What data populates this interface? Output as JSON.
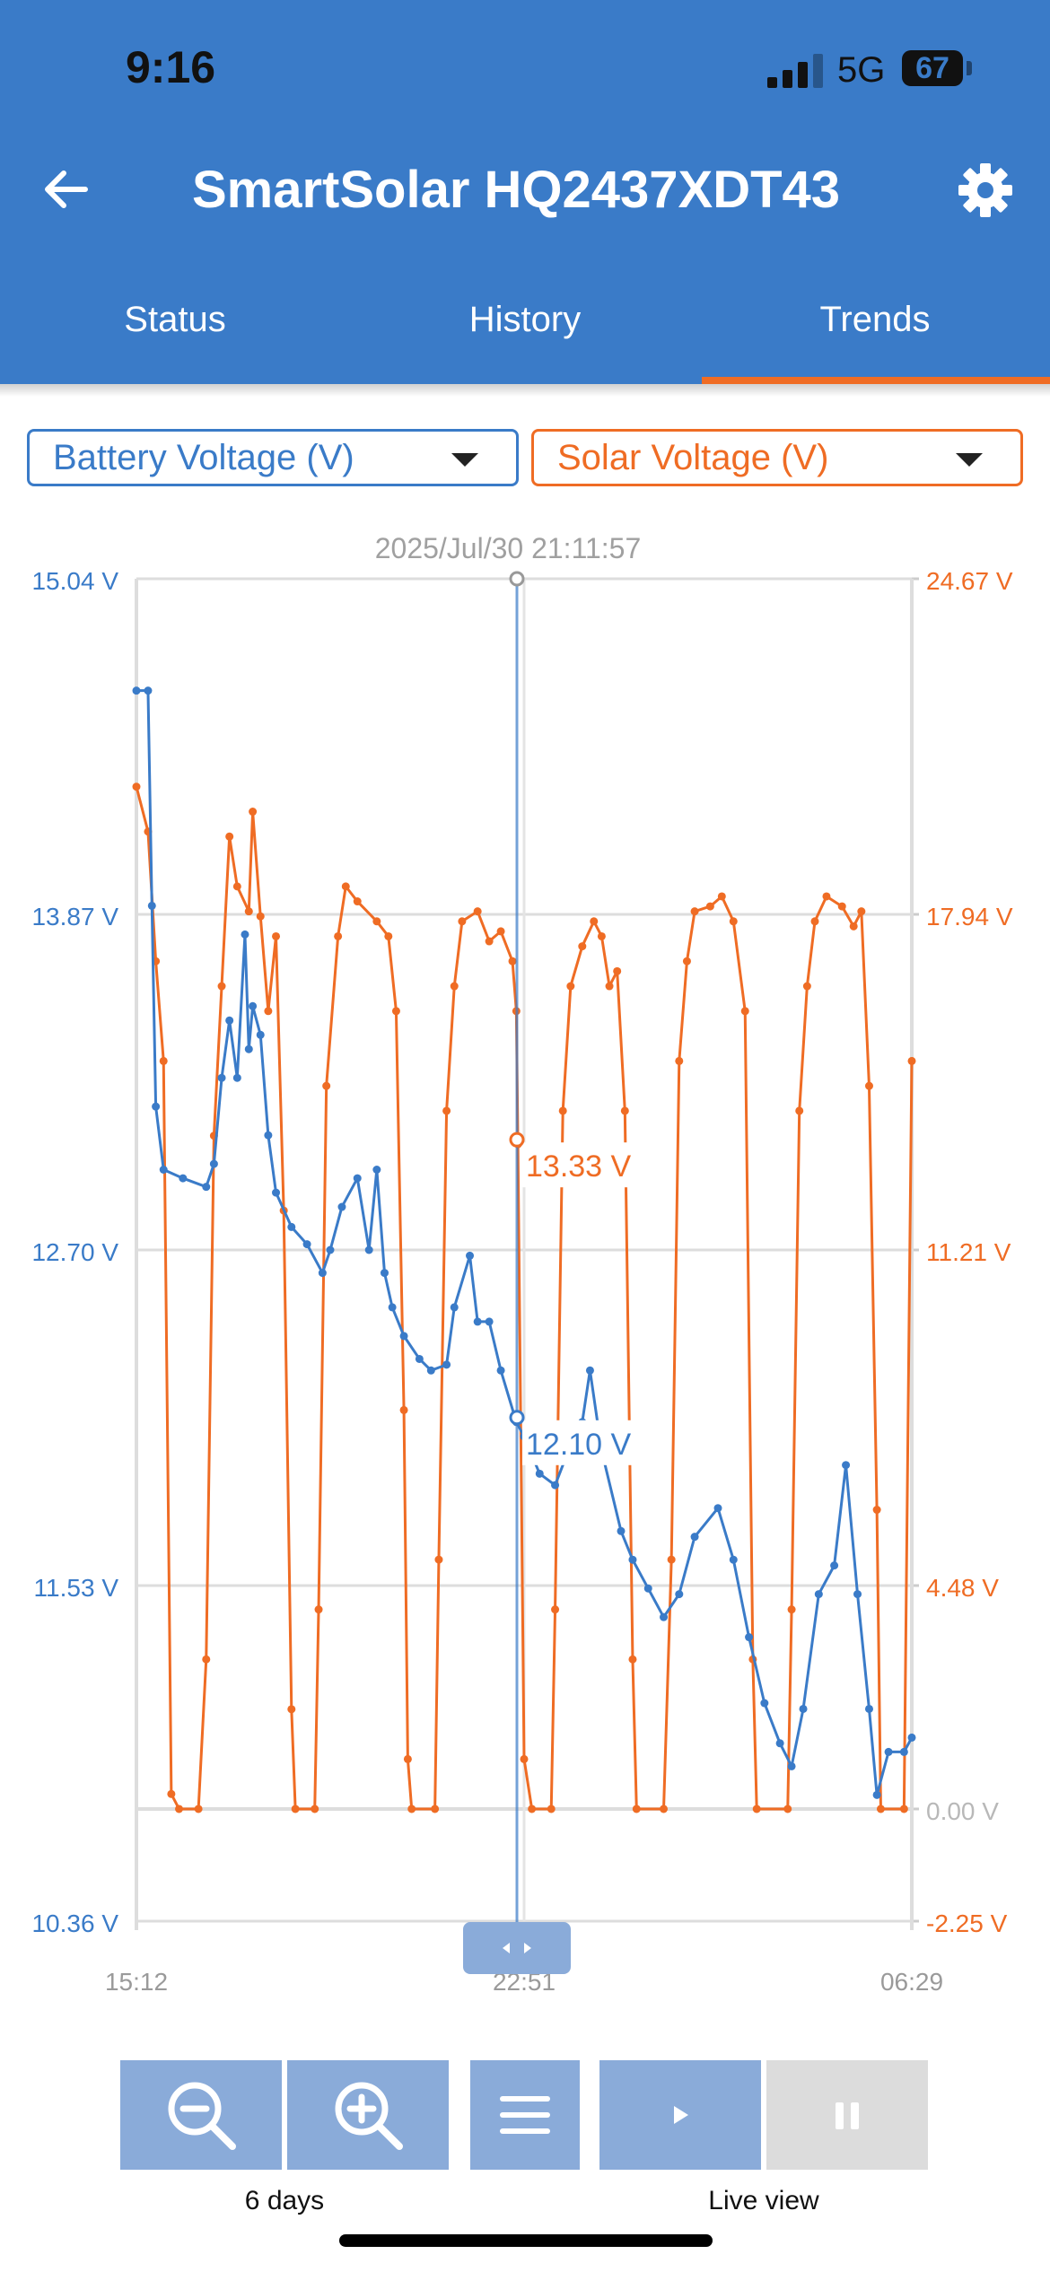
{
  "status_bar": {
    "time": "9:16",
    "network": "5G",
    "battery": "67"
  },
  "header": {
    "title": "SmartSolar HQ2437XDT43"
  },
  "tabs": [
    {
      "label": "Status",
      "active": false
    },
    {
      "label": "History",
      "active": false
    },
    {
      "label": "Trends",
      "active": true
    }
  ],
  "selectors": {
    "left": {
      "value": "Battery Voltage (V)"
    },
    "right": {
      "value": "Solar Voltage (V)"
    }
  },
  "colors": {
    "battery": "#3a7bc8",
    "solar": "#ef6c24",
    "header": "#3a7bc8"
  },
  "chart_data": {
    "type": "line",
    "cursor": {
      "timestamp": "2025/Jul/30 21:11:57",
      "battery_label": "12.10 V",
      "solar_label": "13.33 V",
      "battery": 12.1,
      "solar": 13.33
    },
    "x_ticks": [
      "15:12",
      "22:51",
      "06:29"
    ],
    "left_axis": {
      "ticks": [
        "15.04 V",
        "13.87 V",
        "12.70 V",
        "11.53 V",
        "10.36 V"
      ],
      "range": [
        10.36,
        15.04
      ]
    },
    "right_axis": {
      "ticks": [
        "24.67 V",
        "17.94 V",
        "11.21 V",
        "4.48 V",
        "0.00 V",
        "-2.25 V"
      ],
      "range": [
        -2.25,
        24.67
      ]
    },
    "x_range": [
      0,
      1
    ],
    "series": [
      {
        "name": "Battery Voltage (V)",
        "axis": "left",
        "points": [
          [
            0.0,
            14.65
          ],
          [
            0.015,
            14.65
          ],
          [
            0.02,
            13.9
          ],
          [
            0.025,
            13.2
          ],
          [
            0.035,
            12.98
          ],
          [
            0.06,
            12.95
          ],
          [
            0.09,
            12.92
          ],
          [
            0.1,
            13.0
          ],
          [
            0.11,
            13.3
          ],
          [
            0.12,
            13.5
          ],
          [
            0.13,
            13.3
          ],
          [
            0.14,
            13.8
          ],
          [
            0.145,
            13.4
          ],
          [
            0.15,
            13.55
          ],
          [
            0.16,
            13.45
          ],
          [
            0.17,
            13.1
          ],
          [
            0.18,
            12.9
          ],
          [
            0.2,
            12.78
          ],
          [
            0.22,
            12.72
          ],
          [
            0.24,
            12.62
          ],
          [
            0.25,
            12.7
          ],
          [
            0.265,
            12.85
          ],
          [
            0.285,
            12.95
          ],
          [
            0.3,
            12.7
          ],
          [
            0.31,
            12.98
          ],
          [
            0.32,
            12.62
          ],
          [
            0.33,
            12.5
          ],
          [
            0.345,
            12.4
          ],
          [
            0.365,
            12.32
          ],
          [
            0.38,
            12.28
          ],
          [
            0.4,
            12.3
          ],
          [
            0.41,
            12.5
          ],
          [
            0.43,
            12.68
          ],
          [
            0.44,
            12.45
          ],
          [
            0.455,
            12.45
          ],
          [
            0.47,
            12.28
          ],
          [
            0.49,
            12.1
          ],
          [
            0.5,
            12.05
          ],
          [
            0.52,
            11.92
          ],
          [
            0.54,
            11.88
          ],
          [
            0.56,
            12.02
          ],
          [
            0.575,
            12.1
          ],
          [
            0.585,
            12.28
          ],
          [
            0.6,
            12.0
          ],
          [
            0.625,
            11.72
          ],
          [
            0.64,
            11.62
          ],
          [
            0.66,
            11.52
          ],
          [
            0.68,
            11.42
          ],
          [
            0.7,
            11.5
          ],
          [
            0.72,
            11.7
          ],
          [
            0.75,
            11.8
          ],
          [
            0.77,
            11.62
          ],
          [
            0.79,
            11.35
          ],
          [
            0.81,
            11.12
          ],
          [
            0.83,
            10.98
          ],
          [
            0.845,
            10.9
          ],
          [
            0.86,
            11.1
          ],
          [
            0.88,
            11.5
          ],
          [
            0.9,
            11.6
          ],
          [
            0.915,
            11.95
          ],
          [
            0.93,
            11.5
          ],
          [
            0.945,
            11.1
          ],
          [
            0.955,
            10.8
          ],
          [
            0.97,
            10.95
          ],
          [
            0.99,
            10.95
          ],
          [
            1.0,
            11.0
          ]
        ]
      },
      {
        "name": "Solar Voltage (V)",
        "axis": "right",
        "points": [
          [
            0.0,
            20.5
          ],
          [
            0.015,
            19.6
          ],
          [
            0.025,
            17.0
          ],
          [
            0.035,
            15.0
          ],
          [
            0.045,
            0.3
          ],
          [
            0.055,
            0.0
          ],
          [
            0.08,
            0.0
          ],
          [
            0.09,
            3.0
          ],
          [
            0.1,
            13.5
          ],
          [
            0.11,
            16.5
          ],
          [
            0.12,
            19.5
          ],
          [
            0.13,
            18.5
          ],
          [
            0.145,
            18.0
          ],
          [
            0.15,
            20.0
          ],
          [
            0.16,
            17.9
          ],
          [
            0.17,
            16.0
          ],
          [
            0.18,
            17.5
          ],
          [
            0.19,
            12.0
          ],
          [
            0.2,
            2.0
          ],
          [
            0.205,
            0.0
          ],
          [
            0.23,
            0.0
          ],
          [
            0.235,
            4.0
          ],
          [
            0.245,
            14.5
          ],
          [
            0.26,
            17.5
          ],
          [
            0.27,
            18.5
          ],
          [
            0.285,
            18.2
          ],
          [
            0.31,
            17.8
          ],
          [
            0.325,
            17.5
          ],
          [
            0.335,
            16.0
          ],
          [
            0.345,
            8.0
          ],
          [
            0.35,
            1.0
          ],
          [
            0.355,
            0.0
          ],
          [
            0.385,
            0.0
          ],
          [
            0.39,
            5.0
          ],
          [
            0.4,
            14.0
          ],
          [
            0.41,
            16.5
          ],
          [
            0.42,
            17.8
          ],
          [
            0.44,
            18.0
          ],
          [
            0.455,
            17.4
          ],
          [
            0.47,
            17.6
          ],
          [
            0.485,
            17.0
          ],
          [
            0.49,
            16.0
          ],
          [
            0.492,
            13.33
          ],
          [
            0.5,
            1.0
          ],
          [
            0.51,
            0.0
          ],
          [
            0.535,
            0.0
          ],
          [
            0.54,
            4.0
          ],
          [
            0.55,
            14.0
          ],
          [
            0.56,
            16.5
          ],
          [
            0.575,
            17.3
          ],
          [
            0.59,
            17.8
          ],
          [
            0.6,
            17.5
          ],
          [
            0.61,
            16.5
          ],
          [
            0.62,
            16.8
          ],
          [
            0.63,
            14.0
          ],
          [
            0.64,
            3.0
          ],
          [
            0.645,
            0.0
          ],
          [
            0.68,
            0.0
          ],
          [
            0.69,
            5.0
          ],
          [
            0.7,
            15.0
          ],
          [
            0.71,
            17.0
          ],
          [
            0.72,
            18.0
          ],
          [
            0.74,
            18.1
          ],
          [
            0.755,
            18.3
          ],
          [
            0.77,
            17.8
          ],
          [
            0.785,
            16.0
          ],
          [
            0.795,
            3.0
          ],
          [
            0.8,
            0.0
          ],
          [
            0.84,
            0.0
          ],
          [
            0.845,
            4.0
          ],
          [
            0.855,
            14.0
          ],
          [
            0.865,
            16.5
          ],
          [
            0.875,
            17.8
          ],
          [
            0.89,
            18.3
          ],
          [
            0.91,
            18.1
          ],
          [
            0.925,
            17.7
          ],
          [
            0.935,
            18.0
          ],
          [
            0.945,
            14.5
          ],
          [
            0.955,
            6.0
          ],
          [
            0.96,
            0.0
          ],
          [
            0.99,
            0.0
          ],
          [
            1.0,
            15.0
          ]
        ]
      }
    ]
  },
  "toolbar": {
    "zoom_label": "6 days",
    "live_label": "Live view"
  }
}
